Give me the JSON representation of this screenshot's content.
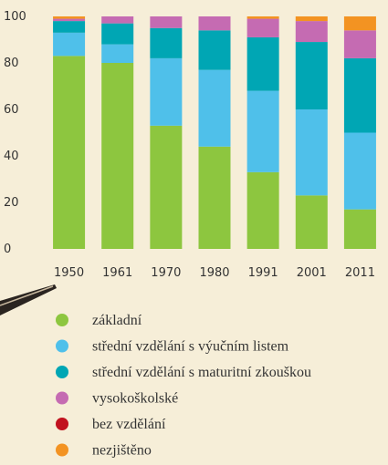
{
  "chart_data": {
    "type": "stacked-bar",
    "categories": [
      "1950",
      "1961",
      "1970",
      "1980",
      "1991",
      "2001",
      "2011"
    ],
    "series": [
      {
        "name": "základní",
        "color": "#8dc63f",
        "values": [
          83,
          80,
          53,
          44,
          33,
          23,
          17
        ]
      },
      {
        "name": "střední vzdělání s výučním listem",
        "color": "#4fc0ea",
        "values": [
          10,
          8,
          29,
          33,
          35,
          37,
          33
        ]
      },
      {
        "name": "střední vzdělání s maturitní zkouškou",
        "color": "#00a6b4",
        "values": [
          5,
          9,
          13,
          17,
          23,
          29,
          32
        ]
      },
      {
        "name": "vysokoškolské",
        "color": "#c56bb2",
        "values": [
          1,
          3,
          5,
          6,
          8,
          9,
          12
        ]
      },
      {
        "name": "bez vzdělání",
        "color": "#c1121f",
        "values": [
          0,
          0,
          0,
          0,
          0,
          0,
          0
        ]
      },
      {
        "name": "nezjištěno",
        "color": "#f39322",
        "values": [
          1,
          0,
          0,
          0,
          1,
          2,
          6
        ]
      }
    ],
    "ylim": [
      0,
      100
    ],
    "yticks": [
      0,
      20,
      40,
      60,
      80,
      100
    ]
  }
}
